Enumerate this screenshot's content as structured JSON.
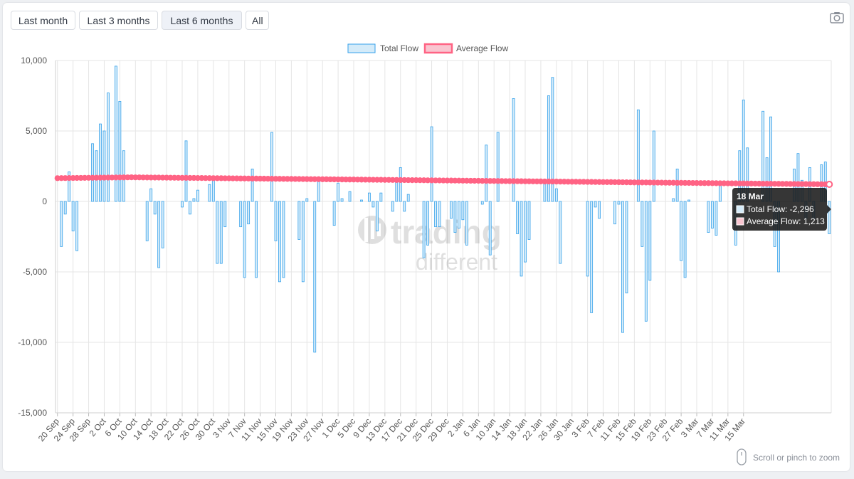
{
  "controls": {
    "ranges": [
      "Last month",
      "Last 3 months",
      "Last 6 months",
      "All"
    ],
    "active_range": "Last 6 months",
    "camera_icon": "camera-icon"
  },
  "watermark": {
    "line1": "trading",
    "line2": "different"
  },
  "zoom_hint": {
    "text": "Scroll or pinch to zoom",
    "icon": "mouse-icon"
  },
  "tooltip": {
    "title": "18 Mar",
    "rows": [
      "Total Flow: -2,296",
      "Average Flow: 1,213"
    ]
  },
  "colors": {
    "bar_fill": "#d4ebf9",
    "bar_stroke": "#36a2eb",
    "avg_line": "#ff6384",
    "avg_fill": "#f9c5d0",
    "grid": "#e5e5e5",
    "tooltip_bg": "#1a1a1a"
  },
  "chart_data": {
    "type": "bar",
    "start_date": "20 Sep",
    "end_date": "18 Mar",
    "x_tick_labels": [
      "20 Sep",
      "24 Sep",
      "28 Sep",
      "2 Oct",
      "6 Oct",
      "10 Oct",
      "14 Oct",
      "18 Oct",
      "22 Oct",
      "26 Oct",
      "30 Oct",
      "3 Nov",
      "7 Nov",
      "11 Nov",
      "15 Nov",
      "19 Nov",
      "23 Nov",
      "27 Nov",
      "1 Dec",
      "5 Dec",
      "9 Dec",
      "13 Dec",
      "17 Dec",
      "21 Dec",
      "25 Dec",
      "29 Dec",
      "2 Jan",
      "6 Jan",
      "10 Jan",
      "14 Jan",
      "18 Jan",
      "22 Jan",
      "26 Jan",
      "30 Jan",
      "3 Feb",
      "7 Feb",
      "11 Feb",
      "15 Feb",
      "19 Feb",
      "23 Feb",
      "27 Feb",
      "3 Mar",
      "7 Mar",
      "11 Mar",
      "15 Mar"
    ],
    "y_ticks": [
      "10,000",
      "5,000",
      "0",
      "-5,000",
      "-10,000",
      "-15,000"
    ],
    "ylim": [
      -15000,
      10000
    ],
    "legend": [
      "Total Flow",
      "Average Flow"
    ],
    "legend_position": "top",
    "grid": true,
    "series": [
      {
        "name": "Total Flow",
        "type": "bar",
        "values": [
          0,
          -3200,
          -900,
          2100,
          -2100,
          -3500,
          0,
          0,
          0,
          4100,
          3600,
          5500,
          5000,
          7700,
          0,
          9600,
          7100,
          3600,
          0,
          0,
          0,
          0,
          0,
          -2800,
          900,
          -900,
          -4700,
          -3300,
          0,
          0,
          0,
          0,
          -400,
          4300,
          -900,
          200,
          800,
          0,
          0,
          1200,
          1800,
          -4400,
          -4400,
          -1800,
          0,
          0,
          0,
          -1800,
          -5400,
          -1600,
          2300,
          -5400,
          0,
          0,
          0,
          4900,
          -2800,
          -5700,
          -5400,
          0,
          0,
          0,
          -2700,
          -5700,
          200,
          0,
          -10700,
          1600,
          0,
          0,
          0,
          -1700,
          1300,
          200,
          0,
          700,
          0,
          0,
          100,
          0,
          600,
          -400,
          -2100,
          600,
          0,
          0,
          -700,
          1400,
          2400,
          -700,
          500,
          0,
          0,
          0,
          -4000,
          -3100,
          5300,
          -1800,
          -1800,
          0,
          0,
          -1200,
          -2200,
          -1900,
          -1300,
          -3100,
          0,
          0,
          0,
          -200,
          4000,
          -3800,
          0,
          4900,
          0,
          0,
          0,
          7300,
          -2300,
          -5300,
          -4300,
          -2700,
          0,
          0,
          0,
          1400,
          7500,
          8800,
          900,
          -4400,
          0,
          0,
          0,
          0,
          0,
          0,
          -5300,
          -7900,
          -400,
          -1200,
          0,
          0,
          0,
          -1600,
          -200,
          -9300,
          -6500,
          0,
          0,
          6500,
          -3200,
          -8500,
          -5600,
          5000,
          0,
          0,
          0,
          0,
          200,
          2300,
          -4200,
          -5400,
          100,
          0,
          0,
          0,
          0,
          -2200,
          -1900,
          -2400,
          1200,
          0,
          0,
          0,
          -3100,
          3600,
          7200,
          3800,
          0,
          0,
          0,
          6400,
          3100,
          6000,
          -3200,
          -5000,
          0,
          0,
          0,
          2300,
          3400,
          1500,
          -1200,
          2400,
          -1200,
          0,
          2600,
          2800,
          -2296
        ]
      },
      {
        "name": "Average Flow",
        "type": "line",
        "start": 1650,
        "peak_at": "9 Oct",
        "peak": 1710,
        "end": 1213
      }
    ]
  }
}
